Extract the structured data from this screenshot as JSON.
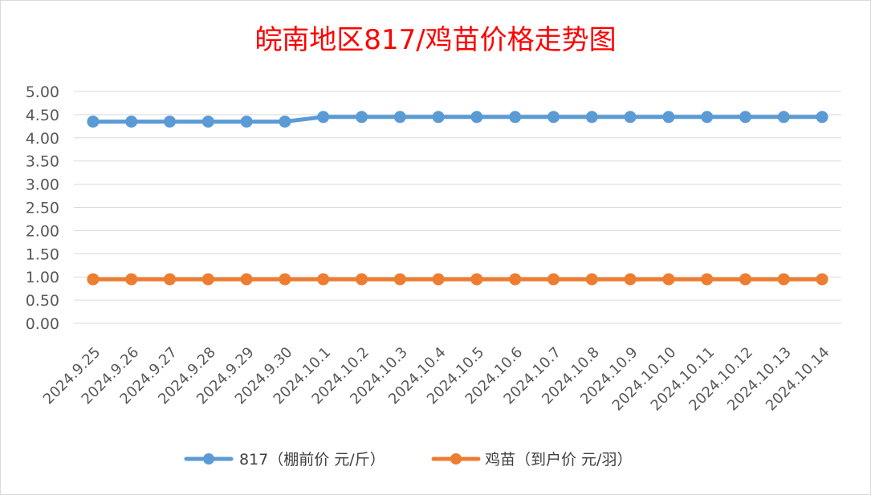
{
  "chart_data": {
    "type": "line",
    "title": "皖南地区817/鸡苗价格走势图",
    "categories": [
      "2024.9.25",
      "2024.9.26",
      "2024.9.27",
      "2024.9.28",
      "2024.9.29",
      "2024.9.30",
      "2024.10.1",
      "2024.10.2",
      "2024.10.3",
      "2024.10.4",
      "2024.10.5",
      "2024.10.6",
      "2024.10.7",
      "2024.10.8",
      "2024.10.9",
      "2024.10.10",
      "2024.10.11",
      "2024.10.12",
      "2024.10.13",
      "2024.10.14"
    ],
    "ylim": [
      0,
      5
    ],
    "yticks": [
      "0.00",
      "0.50",
      "1.00",
      "1.50",
      "2.00",
      "2.50",
      "3.00",
      "3.50",
      "4.00",
      "4.50",
      "5.00"
    ],
    "grid": true,
    "legend_position": "bottom",
    "series": [
      {
        "name": "817（棚前价 元/斤）",
        "color": "#5b9bd5",
        "values": [
          4.35,
          4.35,
          4.35,
          4.35,
          4.35,
          4.35,
          4.45,
          4.45,
          4.45,
          4.45,
          4.45,
          4.45,
          4.45,
          4.45,
          4.45,
          4.45,
          4.45,
          4.45,
          4.45,
          4.45
        ]
      },
      {
        "name": "鸡苗（到户价 元/羽）",
        "color": "#ed7d31",
        "values": [
          0.95,
          0.95,
          0.95,
          0.95,
          0.95,
          0.95,
          0.95,
          0.95,
          0.95,
          0.95,
          0.95,
          0.95,
          0.95,
          0.95,
          0.95,
          0.95,
          0.95,
          0.95,
          0.95,
          0.95
        ]
      }
    ]
  }
}
